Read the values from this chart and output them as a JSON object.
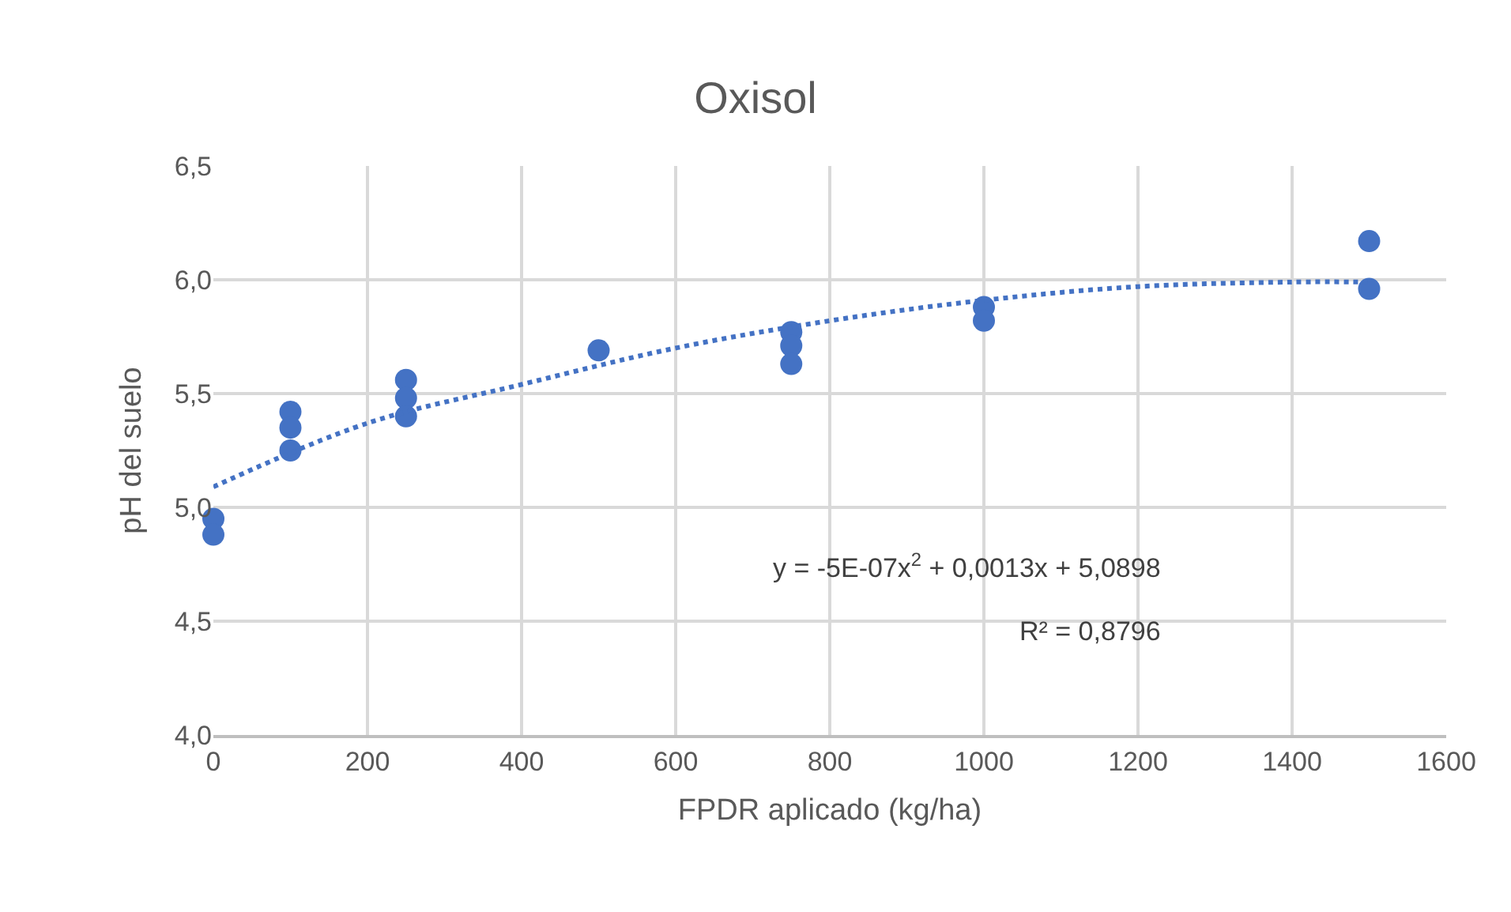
{
  "chart_data": {
    "type": "scatter",
    "title": "Oxisol",
    "xlabel": "FPDR aplicado (kg/ha)",
    "ylabel": "pH del suelo",
    "series": [
      {
        "color": "#4472c4",
        "marker": "circle",
        "x": [
          0,
          0,
          100,
          100,
          100,
          250,
          250,
          250,
          500,
          750,
          750,
          750,
          1000,
          1000,
          1500,
          1500
        ],
        "values": [
          4.95,
          4.88,
          5.42,
          5.35,
          5.25,
          5.56,
          5.48,
          5.4,
          5.69,
          5.77,
          5.71,
          5.63,
          5.88,
          5.82,
          6.17,
          5.96
        ]
      },
      {
        "type": "line",
        "color": "#4472c4",
        "line_style": "dotted",
        "marker": "none",
        "x": [
          0,
          200,
          400,
          600,
          800,
          1000,
          1200,
          1400,
          1500
        ],
        "values": [
          5.09,
          5.37,
          5.54,
          5.7,
          5.82,
          5.91,
          5.97,
          5.99,
          5.99
        ]
      }
    ],
    "annotations": [
      "y = -5E-07x$^{2}$ + 0,0013x + 5,0898",
      "R² = 0,8796"
    ],
    "xlim": [
      0,
      1600
    ],
    "xticks": [
      0,
      200,
      400,
      600,
      800,
      1000,
      1200,
      1400,
      1600
    ],
    "ylim": [
      4.0,
      6.5
    ],
    "yticks": [
      {
        "value": 4.0,
        "label": "4,0"
      },
      {
        "value": 4.5,
        "label": "4,5"
      },
      {
        "value": 5.0,
        "label": "5,0"
      },
      {
        "value": 5.5,
        "label": "5,5"
      },
      {
        "value": 6.0,
        "label": "6,0"
      },
      {
        "value": 6.5,
        "label": "6,5"
      }
    ],
    "grid": true,
    "legend": false
  }
}
